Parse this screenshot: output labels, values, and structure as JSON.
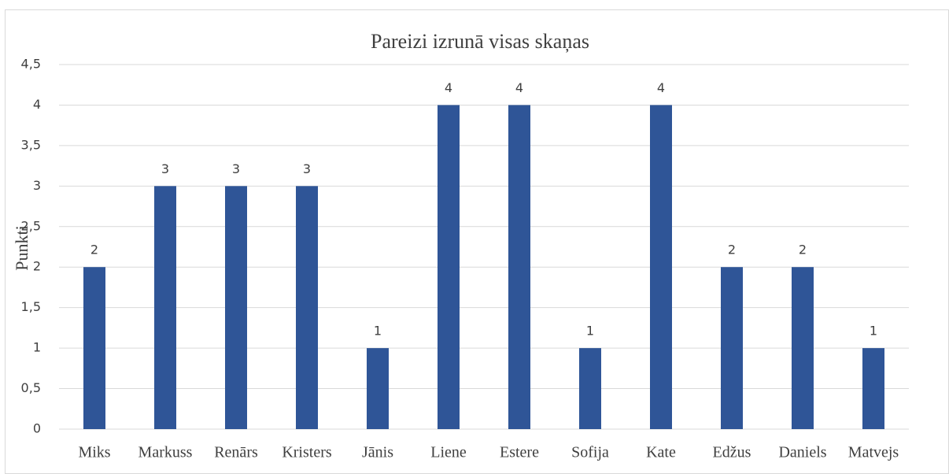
{
  "chart_data": {
    "type": "bar",
    "title": "Pareizi izrunā visas skaņas",
    "y_label": "Punkti",
    "categories": [
      "Miks",
      "Markuss",
      "Renārs",
      "Kristers",
      "Jānis",
      "Liene",
      "Estere",
      "Sofija",
      "Kate",
      "Edžus",
      "Daniels",
      "Matvejs"
    ],
    "values": [
      2,
      3,
      3,
      3,
      1,
      4,
      4,
      1,
      4,
      2,
      2,
      1
    ],
    "color": "#2f5597",
    "ylim": [
      0,
      4.5
    ],
    "yticks": [
      0,
      {
        "value": 0.5,
        "label": "0,5"
      },
      1,
      {
        "value": 1.5,
        "label": "1,5"
      },
      2,
      {
        "value": 2.5,
        "label": "2,5"
      },
      3,
      {
        "value": 3.5,
        "label": "3,5"
      },
      4,
      {
        "value": 4.5,
        "label": "4,5"
      }
    ],
    "grid": true,
    "data_labels": true
  }
}
